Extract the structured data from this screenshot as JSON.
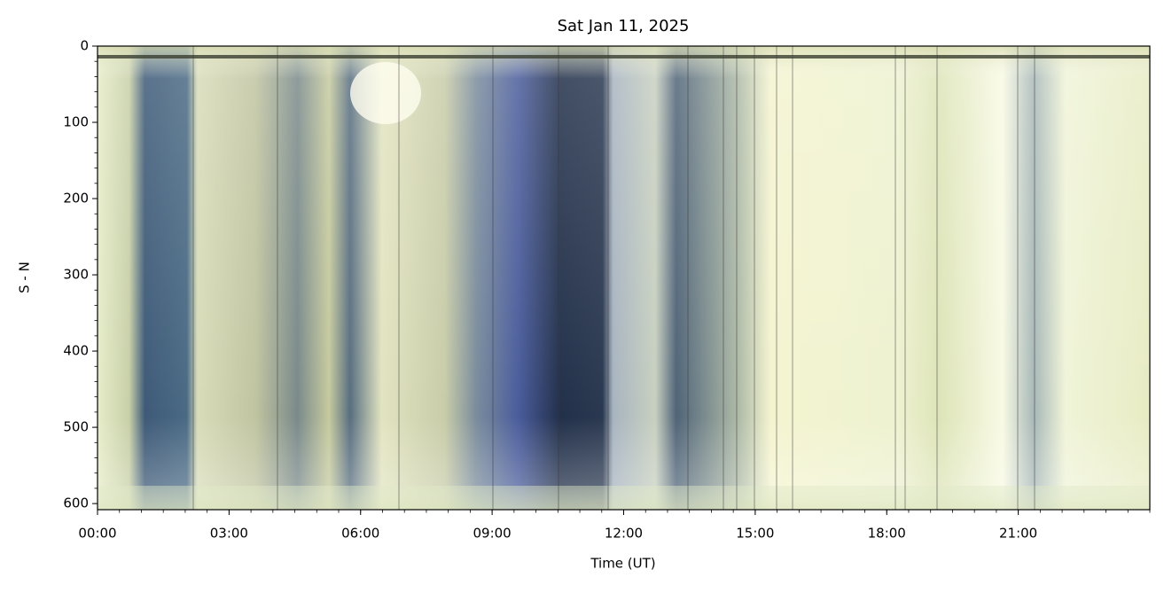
{
  "chart_data": {
    "type": "image",
    "title": "Sat Jan 11, 2025",
    "xlabel": "Time (UT)",
    "ylabel": "S - N",
    "xlim": [
      0,
      24
    ],
    "xticks": [
      {
        "value": 0,
        "label": "00:00"
      },
      {
        "value": 3,
        "label": "03:00"
      },
      {
        "value": 6,
        "label": "06:00"
      },
      {
        "value": 9,
        "label": "09:00"
      },
      {
        "value": 12,
        "label": "12:00"
      },
      {
        "value": 15,
        "label": "15:00"
      },
      {
        "value": 18,
        "label": "18:00"
      },
      {
        "value": 21,
        "label": "21:00"
      }
    ],
    "x_minor_step": 0.5,
    "ylim": [
      0,
      608
    ],
    "y_inverted": true,
    "yticks": [
      0,
      100,
      200,
      300,
      400,
      500,
      600
    ],
    "y_minor_step": 20
  }
}
